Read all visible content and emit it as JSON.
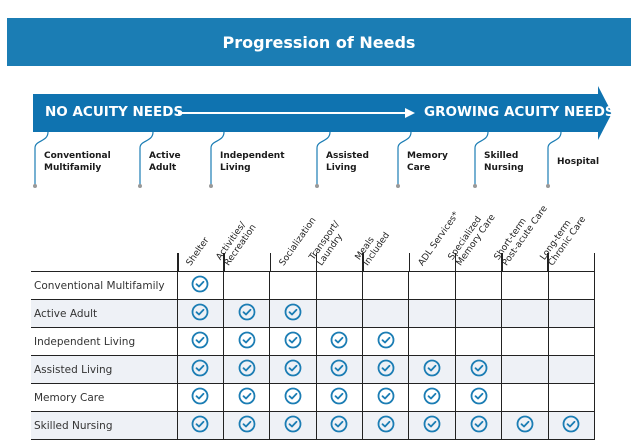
{
  "title": "Progression of Needs",
  "colors": {
    "brand": "#1b7db4",
    "check": "#1b7db4",
    "row_shade": "#eef1f6"
  },
  "arrow": {
    "left_label": "NO ACUITY NEEDS",
    "right_label": "GROWING ACUITY NEEDS"
  },
  "stages": [
    {
      "l1": "Conventional",
      "l2": "Multifamily"
    },
    {
      "l1": "Active",
      "l2": "Adult"
    },
    {
      "l1": "Independent",
      "l2": "Living"
    },
    {
      "l1": "Assisted",
      "l2": "Living"
    },
    {
      "l1": "Memory",
      "l2": "Care"
    },
    {
      "l1": "Skilled",
      "l2": "Nursing"
    },
    {
      "l1": "Hospital",
      "l2": ""
    }
  ],
  "columns": [
    {
      "l1": "Shelter",
      "l2": ""
    },
    {
      "l1": "Activities/",
      "l2": "Recreation"
    },
    {
      "l1": "Socialization",
      "l2": ""
    },
    {
      "l1": "Transport/",
      "l2": "Laundry"
    },
    {
      "l1": "Meals",
      "l2": "Included"
    },
    {
      "l1": "ADL Services*",
      "l2": ""
    },
    {
      "l1": "Specialized",
      "l2": "Memory Care"
    },
    {
      "l1": "Short-term",
      "l2": "Post-acute Care"
    },
    {
      "l1": "Long-term",
      "l2": "Chronic Care"
    }
  ],
  "rows": [
    {
      "label": "Conventional Multifamily",
      "checks": 1
    },
    {
      "label": "Active Adult",
      "checks": 3
    },
    {
      "label": "Independent Living",
      "checks": 5
    },
    {
      "label": "Assisted Living",
      "checks": 7
    },
    {
      "label": "Memory Care",
      "checks": 7
    },
    {
      "label": "Skilled Nursing",
      "checks": 9
    }
  ],
  "icons": {
    "check": "check-circle-icon"
  }
}
